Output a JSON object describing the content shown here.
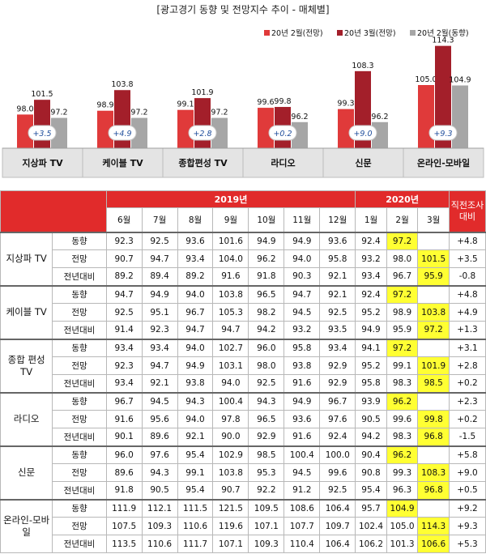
{
  "title": "[광고경기 동향 및 전망지수 추이 - 매체별]",
  "colors": {
    "series1": "#e03a3a",
    "series2": "#a31f2a",
    "series3": "#a6a6a6",
    "header": "#e12b2b",
    "highlight": "#ffff33",
    "delta_text": "#1f4e9c"
  },
  "chart_data": {
    "type": "bar",
    "categories": [
      "지상파 TV",
      "케이블 TV",
      "종합편성 TV",
      "라디오",
      "신문",
      "온라인-모바일"
    ],
    "series": [
      {
        "name": "20년 2월(전망)",
        "values": [
          98.0,
          98.9,
          99.1,
          99.6,
          99.3,
          105.0
        ]
      },
      {
        "name": "20년 3월(전망)",
        "values": [
          101.5,
          103.8,
          101.9,
          99.8,
          108.3,
          114.3
        ]
      },
      {
        "name": "20년 2월(동향)",
        "values": [
          97.2,
          97.2,
          97.2,
          96.2,
          96.2,
          104.9
        ]
      }
    ],
    "deltas": [
      "+3.5",
      "+4.9",
      "+2.8",
      "+0.2",
      "+9.0",
      "+9.3"
    ],
    "legend_position": "top-right"
  },
  "table": {
    "year_2019": "2019년",
    "year_2020": "2020년",
    "compare_header": "직전조사 대비",
    "months_2019": [
      "6월",
      "7월",
      "8월",
      "9월",
      "10월",
      "11월",
      "12월"
    ],
    "months_2020": [
      "1월",
      "2월",
      "3월"
    ],
    "groups": [
      {
        "media": "지상파 TV",
        "rows": [
          {
            "metric": "동향",
            "values": [
              "92.3",
              "92.5",
              "93.6",
              "101.6",
              "94.9",
              "94.9",
              "93.6",
              "92.4",
              "97.2",
              ""
            ],
            "compare": "+4.8"
          },
          {
            "metric": "전망",
            "values": [
              "90.7",
              "94.7",
              "93.4",
              "104.0",
              "96.2",
              "94.0",
              "95.8",
              "93.2",
              "98.0",
              "101.5"
            ],
            "compare": "+3.5"
          },
          {
            "metric": "전년대비",
            "values": [
              "89.2",
              "89.4",
              "89.2",
              "91.6",
              "91.8",
              "90.3",
              "92.1",
              "93.4",
              "96.7",
              "95.9"
            ],
            "compare": "-0.8"
          }
        ]
      },
      {
        "media": "케이블 TV",
        "rows": [
          {
            "metric": "동향",
            "values": [
              "94.7",
              "94.9",
              "94.0",
              "103.8",
              "96.5",
              "94.7",
              "92.1",
              "92.4",
              "97.2",
              ""
            ],
            "compare": "+4.8"
          },
          {
            "metric": "전망",
            "values": [
              "92.5",
              "95.1",
              "96.7",
              "105.3",
              "98.2",
              "94.5",
              "92.5",
              "95.2",
              "98.9",
              "103.8"
            ],
            "compare": "+4.9"
          },
          {
            "metric": "전년대비",
            "values": [
              "91.4",
              "92.3",
              "94.7",
              "94.7",
              "94.2",
              "93.2",
              "93.5",
              "94.9",
              "95.9",
              "97.2"
            ],
            "compare": "+1.3"
          }
        ]
      },
      {
        "media": "종합 편성 TV",
        "rows": [
          {
            "metric": "동향",
            "values": [
              "93.4",
              "93.4",
              "94.0",
              "102.7",
              "96.0",
              "95.8",
              "93.4",
              "94.1",
              "97.2",
              ""
            ],
            "compare": "+3.1"
          },
          {
            "metric": "전망",
            "values": [
              "92.3",
              "94.7",
              "94.9",
              "103.1",
              "98.0",
              "93.8",
              "92.9",
              "95.2",
              "99.1",
              "101.9"
            ],
            "compare": "+2.8"
          },
          {
            "metric": "전년대비",
            "values": [
              "93.4",
              "92.1",
              "93.8",
              "94.0",
              "92.5",
              "91.6",
              "92.9",
              "95.8",
              "98.3",
              "98.5"
            ],
            "compare": "+0.2"
          }
        ]
      },
      {
        "media": "라디오",
        "rows": [
          {
            "metric": "동향",
            "values": [
              "96.7",
              "94.5",
              "94.3",
              "100.4",
              "94.3",
              "94.9",
              "96.7",
              "93.9",
              "96.2",
              ""
            ],
            "compare": "+2.3"
          },
          {
            "metric": "전망",
            "values": [
              "91.6",
              "95.6",
              "94.0",
              "97.8",
              "96.5",
              "93.6",
              "97.6",
              "90.5",
              "99.6",
              "99.8"
            ],
            "compare": "+0.2"
          },
          {
            "metric": "전년대비",
            "values": [
              "90.1",
              "89.6",
              "92.1",
              "90.0",
              "92.9",
              "91.6",
              "92.4",
              "94.2",
              "98.3",
              "96.8"
            ],
            "compare": "-1.5"
          }
        ]
      },
      {
        "media": "신문",
        "rows": [
          {
            "metric": "동향",
            "values": [
              "96.0",
              "97.6",
              "95.4",
              "102.9",
              "98.5",
              "100.4",
              "100.0",
              "90.4",
              "96.2",
              ""
            ],
            "compare": "+5.8"
          },
          {
            "metric": "전망",
            "values": [
              "89.6",
              "94.3",
              "99.1",
              "103.8",
              "95.3",
              "94.5",
              "99.6",
              "90.8",
              "99.3",
              "108.3"
            ],
            "compare": "+9.0"
          },
          {
            "metric": "전년대비",
            "values": [
              "91.8",
              "90.5",
              "95.4",
              "90.7",
              "92.2",
              "91.2",
              "92.5",
              "95.4",
              "96.3",
              "96.8"
            ],
            "compare": "+0.5"
          }
        ]
      },
      {
        "media": "온라인-모바일",
        "rows": [
          {
            "metric": "동향",
            "values": [
              "111.9",
              "112.1",
              "111.5",
              "121.5",
              "109.5",
              "108.6",
              "106.4",
              "95.7",
              "104.9",
              ""
            ],
            "compare": "+9.2"
          },
          {
            "metric": "전망",
            "values": [
              "107.5",
              "109.3",
              "110.6",
              "119.6",
              "107.1",
              "107.7",
              "109.7",
              "102.4",
              "105.0",
              "114.3"
            ],
            "compare": "+9.3"
          },
          {
            "metric": "전년대비",
            "values": [
              "113.5",
              "110.6",
              "111.7",
              "107.1",
              "109.3",
              "110.4",
              "106.4",
              "106.2",
              "101.3",
              "106.6"
            ],
            "compare": "+5.3"
          }
        ]
      }
    ]
  }
}
